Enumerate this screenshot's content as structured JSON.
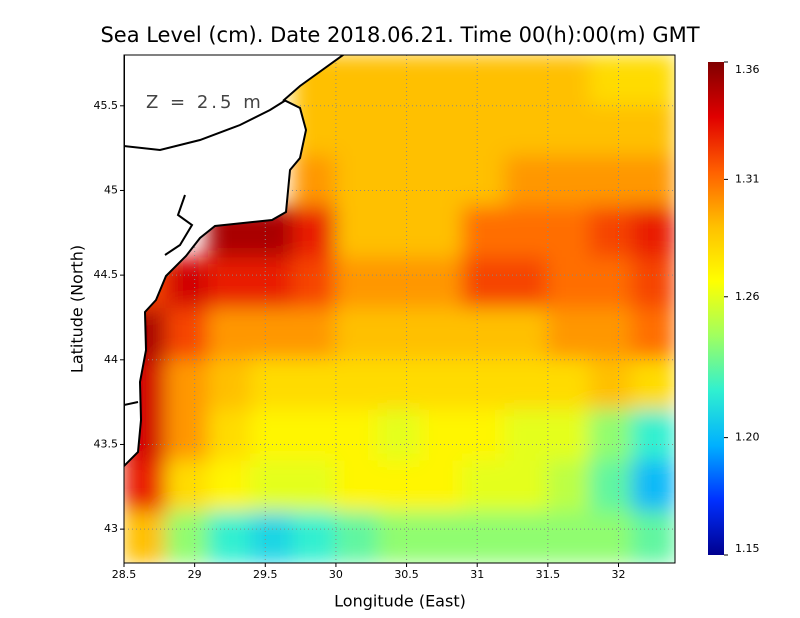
{
  "chart_data": {
    "type": "heatmap",
    "title": "Sea Level (cm). Date 2018.06.21. Time 00(h):00(m) GMT",
    "x_label": "Longitude (East)",
    "y_label": "Latitude (North)",
    "annotation": "Z = 2.5 m",
    "xlim": [
      28.5,
      32.4
    ],
    "ylim": [
      42.8,
      45.8
    ],
    "xticks": [
      28.5,
      29,
      29.5,
      30,
      30.5,
      31,
      31.5,
      32
    ],
    "yticks": [
      43,
      43.5,
      44,
      44.5,
      45,
      45.5
    ],
    "grid": true,
    "clim": [
      1.15,
      1.36
    ],
    "cticks": [
      {
        "value": 1.15,
        "label": "1.15"
      },
      {
        "value": 1.2,
        "label": "1.20"
      },
      1.26,
      1.31,
      1.36
    ],
    "colorscale": [
      "#00008f",
      "#0030ff",
      "#00b0ff",
      "#30f0d0",
      "#a0ff60",
      "#ffff00",
      "#ffc000",
      "#ff6000",
      "#e00000",
      "#800000"
    ],
    "z": [
      [
        null,
        null,
        null,
        null,
        1.29,
        1.29,
        1.29,
        1.29,
        1.29,
        1.29,
        1.29,
        1.28,
        1.28
      ],
      [
        null,
        null,
        null,
        null,
        1.29,
        1.29,
        1.29,
        1.29,
        1.29,
        1.29,
        1.29,
        1.29,
        1.29
      ],
      [
        null,
        null,
        null,
        null,
        1.3,
        1.29,
        1.29,
        1.29,
        1.29,
        1.3,
        1.3,
        1.3,
        1.3
      ],
      [
        null,
        null,
        1.35,
        1.35,
        1.33,
        1.29,
        1.29,
        1.29,
        1.31,
        1.31,
        1.31,
        1.32,
        1.33
      ],
      [
        1.32,
        1.34,
        1.33,
        1.33,
        1.32,
        1.3,
        1.3,
        1.3,
        1.32,
        1.32,
        1.31,
        1.31,
        1.32
      ],
      [
        1.35,
        1.32,
        1.3,
        1.3,
        1.3,
        1.29,
        1.29,
        1.29,
        1.29,
        1.29,
        1.3,
        1.3,
        1.31
      ],
      [
        1.34,
        1.3,
        1.29,
        1.28,
        1.28,
        1.28,
        1.28,
        1.28,
        1.28,
        1.28,
        1.28,
        1.29,
        1.28
      ],
      [
        1.34,
        1.3,
        1.28,
        1.27,
        1.27,
        1.27,
        1.26,
        1.27,
        1.27,
        1.26,
        1.26,
        1.24,
        1.22
      ],
      [
        1.33,
        1.28,
        1.27,
        1.26,
        1.26,
        1.27,
        1.27,
        1.27,
        1.26,
        1.26,
        1.25,
        1.23,
        1.2
      ],
      [
        1.29,
        1.24,
        1.22,
        1.21,
        1.22,
        1.23,
        1.24,
        1.24,
        1.24,
        1.24,
        1.24,
        1.24,
        1.23
      ]
    ]
  }
}
